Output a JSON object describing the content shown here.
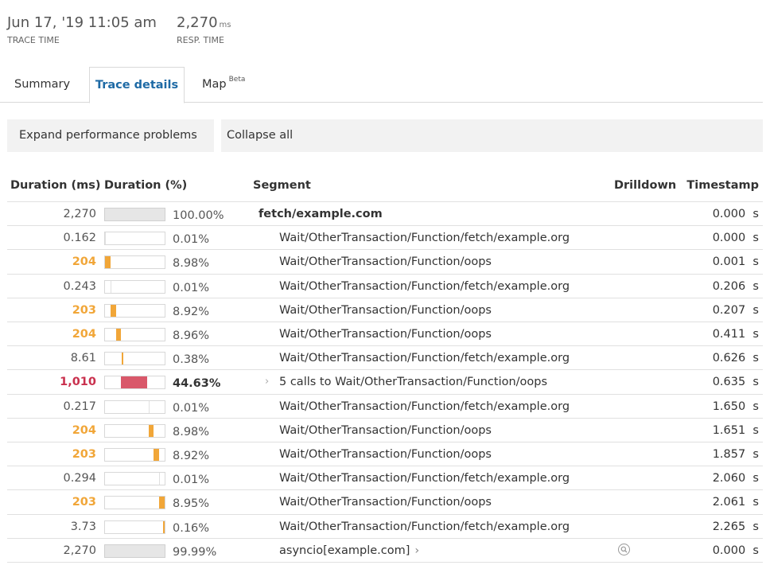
{
  "header": {
    "trace_time": "Jun 17, '19 11:05 am",
    "trace_time_caption": "TRACE TIME",
    "resp_time_value": "2,270",
    "resp_time_unit": "ms",
    "resp_time_caption": "RESP. TIME"
  },
  "tabs": [
    {
      "label": "Summary",
      "active": false
    },
    {
      "label": "Trace details",
      "active": true
    },
    {
      "label": "Map",
      "badge": "Beta",
      "active": false
    }
  ],
  "actions": {
    "expand_label": "Expand performance problems",
    "collapse_label": "Collapse all"
  },
  "table": {
    "columns": [
      "Duration (ms)",
      "Duration (%)",
      "Segment",
      "Drilldown",
      "Timestamp"
    ],
    "rows": [
      {
        "duration": "2,270",
        "level": "normal",
        "pct": "100.00%",
        "fill": 1.0,
        "bar_style": "gray",
        "segment": "fetch/example.com",
        "segment_bold": true,
        "indent": 0,
        "timestamp": "0.000  s"
      },
      {
        "duration": "0.162",
        "level": "normal",
        "pct": "0.01%",
        "fill": 0.0,
        "segment": "Wait/OtherTransaction/Function/fetch/example.org",
        "indent": 1,
        "timestamp": "0.000  s"
      },
      {
        "duration": "204",
        "level": "warn",
        "pct": "8.98%",
        "fill": 0.0898,
        "start": 0.0,
        "segment": "Wait/OtherTransaction/Function/oops",
        "indent": 1,
        "timestamp": "0.001  s"
      },
      {
        "duration": "0.243",
        "level": "normal",
        "pct": "0.01%",
        "fill": 0.0,
        "start": 0.09,
        "segment": "Wait/OtherTransaction/Function/fetch/example.org",
        "indent": 1,
        "timestamp": "0.206  s"
      },
      {
        "duration": "203",
        "level": "warn",
        "pct": "8.92%",
        "fill": 0.0892,
        "start": 0.091,
        "segment": "Wait/OtherTransaction/Function/oops",
        "indent": 1,
        "timestamp": "0.207  s"
      },
      {
        "duration": "204",
        "level": "warn",
        "pct": "8.96%",
        "fill": 0.0896,
        "start": 0.181,
        "segment": "Wait/OtherTransaction/Function/oops",
        "indent": 1,
        "timestamp": "0.411  s"
      },
      {
        "duration": "8.61",
        "level": "normal",
        "pct": "0.38%",
        "fill": 0.004,
        "start": 0.276,
        "segment": "Wait/OtherTransaction/Function/fetch/example.org",
        "indent": 1,
        "timestamp": "0.626  s"
      },
      {
        "duration": "1,010",
        "level": "crit",
        "pct": "44.63%",
        "pct_bold": true,
        "fill": 0.4463,
        "start": 0.28,
        "segment": "5 calls to Wait/OtherTransaction/Function/oops",
        "indent": 1,
        "expandable": true,
        "timestamp": "0.635  s"
      },
      {
        "duration": "0.217",
        "level": "normal",
        "pct": "0.01%",
        "fill": 0.0,
        "start": 0.727,
        "segment": "Wait/OtherTransaction/Function/fetch/example.org",
        "indent": 1,
        "timestamp": "1.650  s"
      },
      {
        "duration": "204",
        "level": "warn",
        "pct": "8.98%",
        "fill": 0.0898,
        "start": 0.727,
        "segment": "Wait/OtherTransaction/Function/oops",
        "indent": 1,
        "timestamp": "1.651  s"
      },
      {
        "duration": "203",
        "level": "warn",
        "pct": "8.92%",
        "fill": 0.0892,
        "start": 0.818,
        "segment": "Wait/OtherTransaction/Function/oops",
        "indent": 1,
        "timestamp": "1.857  s"
      },
      {
        "duration": "0.294",
        "level": "normal",
        "pct": "0.01%",
        "fill": 0.0,
        "start": 0.907,
        "segment": "Wait/OtherTransaction/Function/fetch/example.org",
        "indent": 1,
        "timestamp": "2.060  s"
      },
      {
        "duration": "203",
        "level": "warn",
        "pct": "8.95%",
        "fill": 0.0895,
        "start": 0.908,
        "segment": "Wait/OtherTransaction/Function/oops",
        "indent": 1,
        "timestamp": "2.061  s"
      },
      {
        "duration": "3.73",
        "level": "normal",
        "pct": "0.16%",
        "fill": 0.002,
        "start": 0.998,
        "segment": "Wait/OtherTransaction/Function/fetch/example.org",
        "indent": 1,
        "timestamp": "2.265  s"
      },
      {
        "duration": "2,270",
        "level": "normal",
        "pct": "99.99%",
        "fill": 1.0,
        "bar_style": "gray",
        "segment": "asyncio[example.com]",
        "indent": 0.5,
        "has_chevron_after": true,
        "drilldown_icon": "magnifier-icon",
        "timestamp": "0.000  s"
      }
    ]
  },
  "colors": {
    "accent": "#1e6aa5",
    "warn": "#f1a638",
    "crit": "#d9586a",
    "gray_bar": "#e6e6e6"
  }
}
